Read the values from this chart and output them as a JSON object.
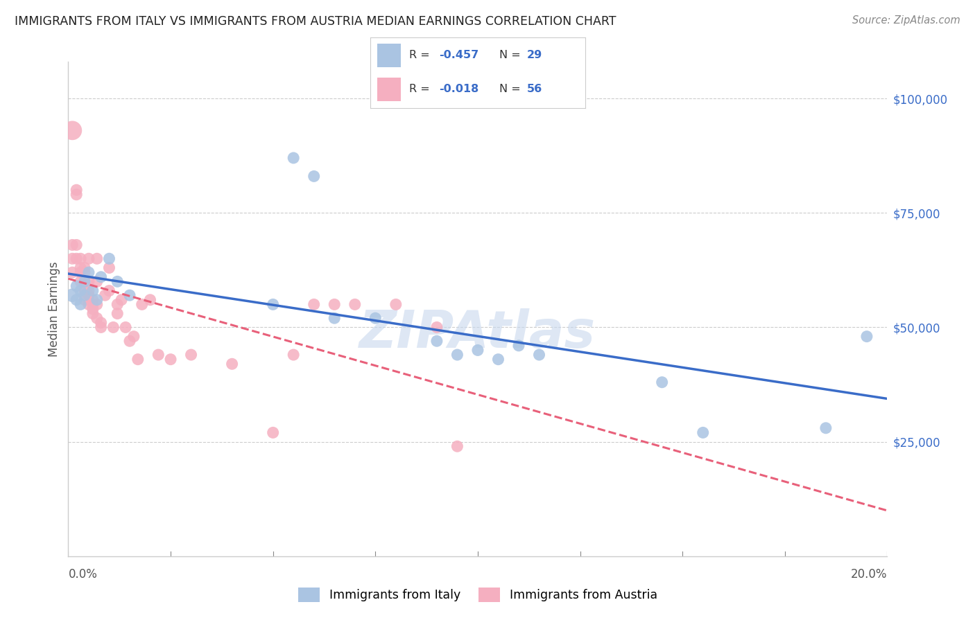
{
  "title": "IMMIGRANTS FROM ITALY VS IMMIGRANTS FROM AUSTRIA MEDIAN EARNINGS CORRELATION CHART",
  "source": "Source: ZipAtlas.com",
  "ylabel": "Median Earnings",
  "y_ticks": [
    25000,
    50000,
    75000,
    100000
  ],
  "y_tick_labels": [
    "$25,000",
    "$50,000",
    "$75,000",
    "$100,000"
  ],
  "x_min": 0.0,
  "x_max": 0.2,
  "y_min": 0,
  "y_max": 108000,
  "italy_color": "#aac4e2",
  "austria_color": "#f5afc0",
  "italy_line_color": "#3a6cc8",
  "austria_line_color": "#e8607a",
  "watermark": "ZIPAtlas",
  "legend_R_italy": "-0.457",
  "legend_N_italy": "29",
  "legend_R_austria": "-0.018",
  "legend_N_austria": "56",
  "italy_x": [
    0.001,
    0.002,
    0.002,
    0.003,
    0.003,
    0.004,
    0.004,
    0.005,
    0.006,
    0.007,
    0.008,
    0.01,
    0.012,
    0.015,
    0.05,
    0.055,
    0.06,
    0.065,
    0.075,
    0.09,
    0.095,
    0.1,
    0.105,
    0.11,
    0.115,
    0.145,
    0.155,
    0.185,
    0.195
  ],
  "italy_y": [
    57000,
    59000,
    56000,
    58000,
    55000,
    60000,
    57000,
    62000,
    58000,
    56000,
    61000,
    65000,
    60000,
    57000,
    55000,
    87000,
    83000,
    52000,
    52000,
    47000,
    44000,
    45000,
    43000,
    46000,
    44000,
    38000,
    27000,
    28000,
    48000
  ],
  "italy_size": [
    200,
    150,
    150,
    150,
    150,
    150,
    150,
    150,
    150,
    150,
    150,
    150,
    150,
    150,
    150,
    150,
    150,
    150,
    150,
    150,
    150,
    150,
    150,
    150,
    150,
    150,
    150,
    150,
    150
  ],
  "austria_x": [
    0.001,
    0.001,
    0.001,
    0.001,
    0.002,
    0.002,
    0.002,
    0.002,
    0.003,
    0.003,
    0.003,
    0.003,
    0.004,
    0.004,
    0.004,
    0.004,
    0.005,
    0.005,
    0.005,
    0.005,
    0.005,
    0.006,
    0.006,
    0.006,
    0.006,
    0.007,
    0.007,
    0.007,
    0.007,
    0.008,
    0.008,
    0.009,
    0.01,
    0.01,
    0.011,
    0.012,
    0.012,
    0.013,
    0.014,
    0.015,
    0.016,
    0.017,
    0.018,
    0.02,
    0.022,
    0.025,
    0.03,
    0.04,
    0.05,
    0.055,
    0.06,
    0.065,
    0.07,
    0.08,
    0.09,
    0.095
  ],
  "austria_y": [
    93000,
    68000,
    65000,
    62000,
    80000,
    79000,
    68000,
    65000,
    65000,
    63000,
    62000,
    60000,
    63000,
    62000,
    58000,
    56000,
    65000,
    60000,
    58000,
    57000,
    55000,
    56000,
    55000,
    54000,
    53000,
    65000,
    60000,
    55000,
    52000,
    51000,
    50000,
    57000,
    63000,
    58000,
    50000,
    55000,
    53000,
    56000,
    50000,
    47000,
    48000,
    43000,
    55000,
    56000,
    44000,
    43000,
    44000,
    42000,
    27000,
    44000,
    55000,
    55000,
    55000,
    55000,
    50000,
    24000
  ],
  "austria_size": [
    400,
    150,
    150,
    150,
    150,
    150,
    150,
    150,
    150,
    150,
    150,
    150,
    150,
    150,
    150,
    150,
    150,
    150,
    150,
    150,
    150,
    150,
    150,
    150,
    150,
    150,
    150,
    150,
    150,
    150,
    150,
    150,
    150,
    150,
    150,
    150,
    150,
    150,
    150,
    150,
    150,
    150,
    150,
    150,
    150,
    150,
    150,
    150,
    150,
    150,
    150,
    150,
    150,
    150,
    150,
    150
  ]
}
